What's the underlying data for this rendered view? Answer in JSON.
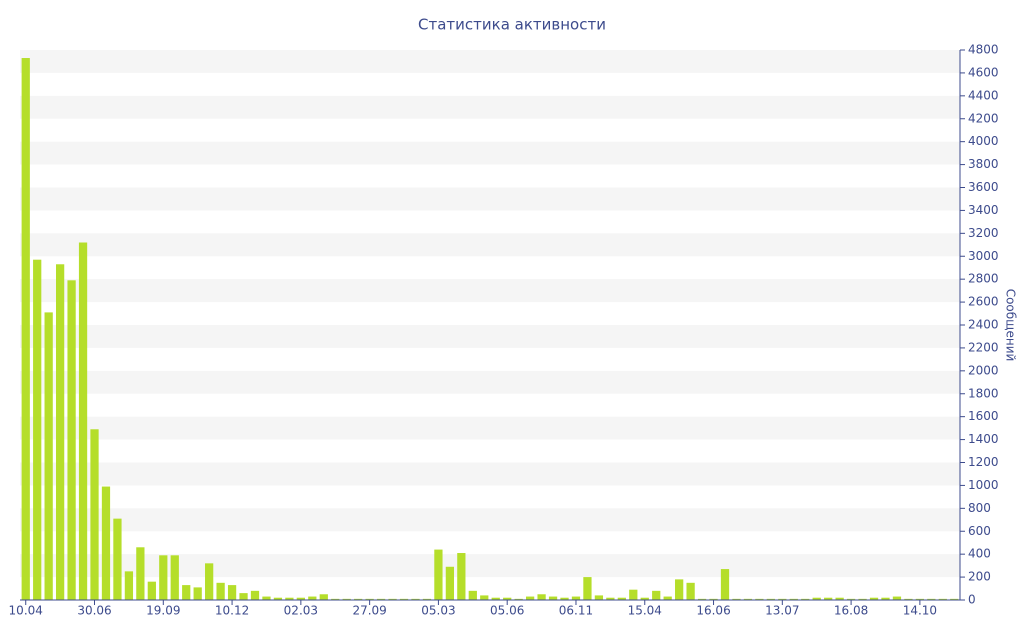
{
  "chart_data": {
    "type": "bar",
    "title": "Статистика активности",
    "y_label": "Сообщений",
    "categories": [
      "10.04",
      null,
      null,
      null,
      null,
      null,
      "30.06",
      null,
      null,
      null,
      null,
      null,
      "19.09",
      null,
      null,
      null,
      null,
      null,
      "10.12",
      null,
      null,
      null,
      null,
      null,
      "02.03",
      null,
      null,
      null,
      null,
      null,
      "27.09",
      null,
      null,
      null,
      null,
      null,
      "05.03",
      null,
      null,
      null,
      null,
      null,
      "05.06",
      null,
      null,
      null,
      null,
      null,
      "06.11",
      null,
      null,
      null,
      null,
      null,
      "15.04",
      null,
      null,
      null,
      null,
      null,
      "16.06",
      null,
      null,
      null,
      null,
      null,
      "13.07",
      null,
      null,
      null,
      null,
      null,
      "16.08",
      null,
      null,
      null,
      null,
      null,
      "14.10",
      null,
      null,
      null
    ],
    "values": [
      4730,
      2970,
      2510,
      2930,
      2790,
      3120,
      1490,
      990,
      710,
      250,
      460,
      160,
      390,
      390,
      130,
      110,
      320,
      150,
      130,
      60,
      80,
      30,
      20,
      20,
      20,
      30,
      50,
      10,
      10,
      10,
      10,
      10,
      10,
      10,
      10,
      10,
      440,
      290,
      410,
      80,
      40,
      20,
      20,
      10,
      30,
      50,
      30,
      20,
      30,
      200,
      40,
      20,
      20,
      90,
      20,
      80,
      30,
      180,
      150,
      10,
      10,
      270,
      10,
      10,
      10,
      10,
      10,
      10,
      10,
      20,
      20,
      20,
      10,
      10,
      20,
      20,
      30,
      10,
      10,
      10,
      10,
      10
    ],
    "color": "#b5de2a",
    "ylim": [
      0,
      4800
    ],
    "yticks": [
      0,
      200,
      400,
      600,
      800,
      1000,
      1200,
      1400,
      1600,
      1800,
      2000,
      2200,
      2400,
      2600,
      2800,
      3000,
      3200,
      3400,
      3600,
      3800,
      4000,
      4200,
      4400,
      4600,
      4800
    ],
    "y_axis_side": "right",
    "grid": true
  }
}
